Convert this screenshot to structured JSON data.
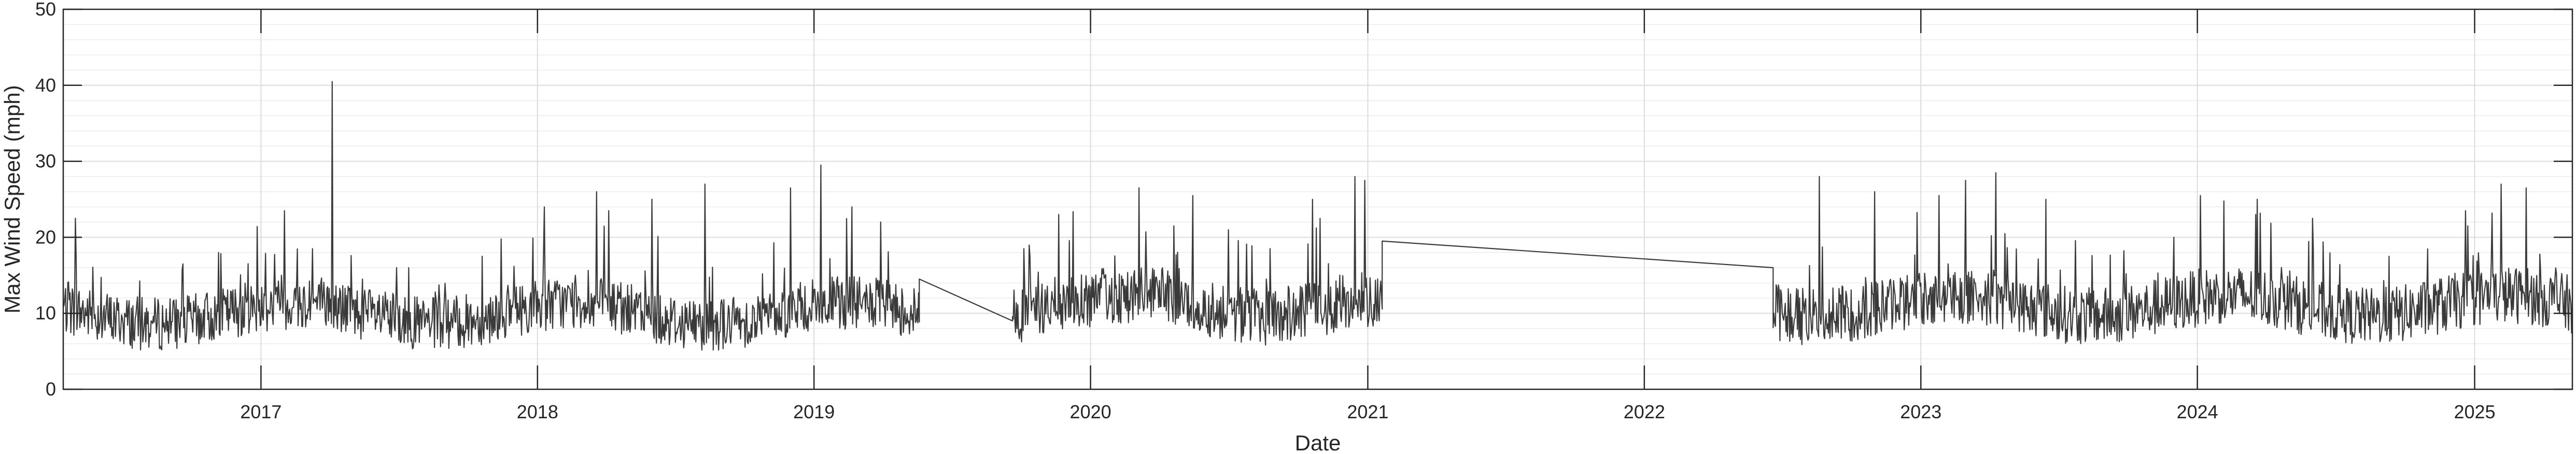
{
  "chart_data": {
    "type": "line",
    "title": "",
    "xlabel": "Date",
    "ylabel": "Max Wind Speed (mph)",
    "xlim": [
      "2016-04-15",
      "2025-05-10"
    ],
    "ylim": [
      0,
      50
    ],
    "x_ticks": [
      "2017-01-01",
      "2018-01-01",
      "2019-01-01",
      "2020-01-01",
      "2021-01-01",
      "2022-01-01",
      "2023-01-01",
      "2024-01-01",
      "2025-01-01"
    ],
    "x_tick_labels": [
      "2017",
      "2018",
      "2019",
      "2020",
      "2021",
      "2022",
      "2023",
      "2024",
      "2025"
    ],
    "y_ticks": [
      0,
      10,
      20,
      30,
      40,
      50
    ],
    "y_tick_labels": [
      "0",
      "10",
      "20",
      "30",
      "40",
      "50"
    ],
    "y_minor_step": 2,
    "grid": true,
    "line_color": "#3a3a3a",
    "series": [
      {
        "segments": [
          {
            "start": "2016-04-15",
            "end": "2019-05-20",
            "base_mean": 10,
            "amplitude": 3.5,
            "spikes": [
              [
                "2016-05-01",
                22.5
              ],
              [
                "2016-09-20",
                16.5
              ],
              [
                "2017-02-01",
                23.5
              ],
              [
                "2017-04-05",
                40.5
              ],
              [
                "2017-03-10",
                18.5
              ],
              [
                "2017-07-15",
                16
              ],
              [
                "2018-01-10",
                24
              ],
              [
                "2018-03-20",
                26
              ],
              [
                "2018-06-01",
                25
              ],
              [
                "2018-08-10",
                27
              ],
              [
                "2018-12-01",
                26.5
              ],
              [
                "2019-01-10",
                29.5
              ],
              [
                "2019-02-20",
                24
              ],
              [
                "2019-03-30",
                22
              ],
              [
                "2018-04-05",
                23.5
              ],
              [
                "2017-10-20",
                17.5
              ]
            ]
          },
          {
            "start": "2019-09-20",
            "end": "2021-01-20",
            "base_mean": 11,
            "amplitude": 3.8,
            "spikes": [
              [
                "2019-10-05",
                18.5
              ],
              [
                "2019-11-20",
                23
              ],
              [
                "2020-03-05",
                26.5
              ],
              [
                "2020-05-15",
                25.5
              ],
              [
                "2020-07-01",
                21
              ],
              [
                "2020-10-20",
                25
              ],
              [
                "2020-12-15",
                28
              ],
              [
                "2020-12-28",
                27.5
              ],
              [
                "2020-04-20",
                21.5
              ],
              [
                "2020-08-25",
                18.5
              ]
            ]
          },
          {
            "start": "2022-06-20",
            "end": "2025-05-10",
            "base_mean": 11,
            "amplitude": 3.8,
            "spikes": [
              [
                "2022-08-20",
                28
              ],
              [
                "2022-11-01",
                26
              ],
              [
                "2023-01-25",
                25.5
              ],
              [
                "2023-04-10",
                28.5
              ],
              [
                "2023-03-01",
                27.5
              ],
              [
                "2023-06-15",
                25
              ],
              [
                "2024-01-05",
                25.5
              ],
              [
                "2024-03-20",
                25
              ],
              [
                "2024-06-01",
                22.5
              ],
              [
                "2024-12-20",
                23.5
              ],
              [
                "2025-02-05",
                27
              ],
              [
                "2025-03-10",
                26.5
              ],
              [
                "2023-12-01",
                20
              ],
              [
                "2024-09-10",
                17.5
              ]
            ]
          }
        ],
        "gap_points": [
          [
            "2019-05-20",
            14.5
          ],
          [
            "2019-09-20",
            9
          ],
          [
            "2021-01-20",
            19.5
          ],
          [
            "2022-06-20",
            16
          ]
        ]
      }
    ]
  }
}
